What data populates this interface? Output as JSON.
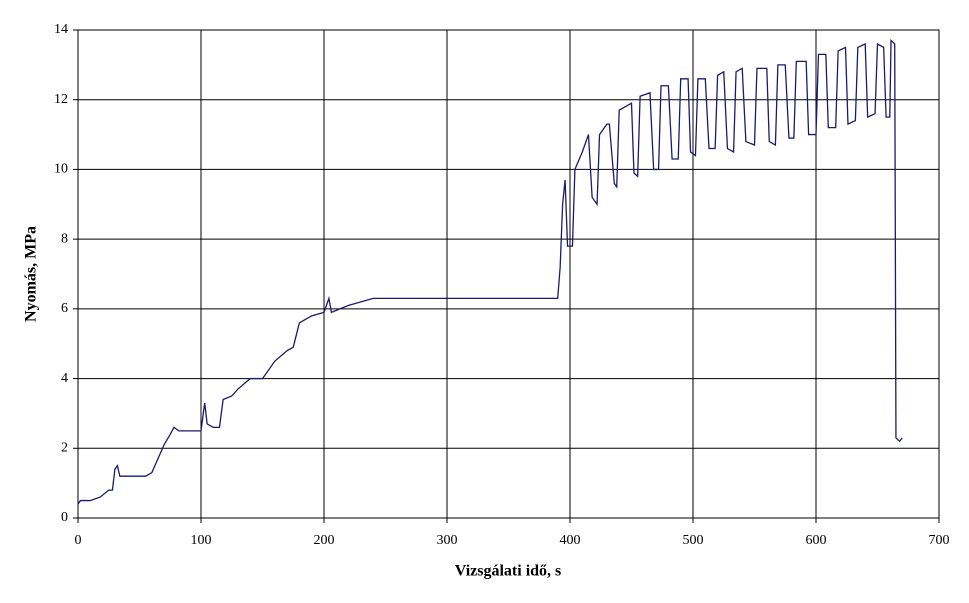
{
  "chart_data": {
    "type": "line",
    "xlabel": "Vizsgálati idő, s",
    "ylabel": "Nyomás, MPa",
    "xlim": [
      0,
      700
    ],
    "xticks": [
      0,
      100,
      200,
      300,
      400,
      500,
      600,
      700
    ],
    "ylim": [
      0,
      14
    ],
    "yticks": [
      0,
      2,
      4,
      6,
      8,
      10,
      12,
      14
    ],
    "grid": true,
    "series": [
      {
        "color": "#1a1a6e",
        "x": [
          0,
          2,
          10,
          18,
          25,
          28,
          30,
          32,
          34,
          45,
          55,
          60,
          65,
          70,
          75,
          78,
          82,
          90,
          100,
          103,
          105,
          110,
          115,
          118,
          125,
          130,
          140,
          150,
          160,
          170,
          175,
          180,
          190,
          200,
          204,
          206,
          220,
          240,
          260,
          300,
          340,
          380,
          390,
          392,
          394,
          396,
          398,
          402,
          404,
          410,
          415,
          418,
          422,
          424,
          430,
          432,
          436,
          438,
          440,
          450,
          452,
          455,
          457,
          465,
          468,
          472,
          474,
          480,
          483,
          488,
          490,
          496,
          498,
          502,
          504,
          510,
          513,
          518,
          520,
          525,
          528,
          533,
          535,
          540,
          543,
          550,
          552,
          560,
          562,
          567,
          569,
          575,
          578,
          582,
          584,
          592,
          594,
          600,
          602,
          608,
          610,
          616,
          618,
          624,
          626,
          632,
          634,
          640,
          642,
          648,
          650,
          655,
          657,
          660,
          661,
          664,
          665,
          668,
          670
        ],
        "values": [
          0.4,
          0.5,
          0.5,
          0.6,
          0.8,
          0.8,
          1.4,
          1.5,
          1.2,
          1.2,
          1.2,
          1.3,
          1.7,
          2.1,
          2.4,
          2.6,
          2.5,
          2.5,
          2.5,
          3.3,
          2.7,
          2.6,
          2.6,
          3.4,
          3.5,
          3.7,
          4.0,
          4.0,
          4.5,
          4.8,
          4.9,
          5.6,
          5.8,
          5.9,
          6.3,
          5.9,
          6.1,
          6.3,
          6.3,
          6.3,
          6.3,
          6.3,
          6.3,
          7.2,
          9.0,
          9.7,
          7.8,
          7.8,
          10.0,
          10.5,
          11.0,
          9.2,
          9.0,
          11.0,
          11.3,
          11.3,
          9.6,
          9.5,
          11.7,
          11.9,
          9.9,
          9.8,
          12.1,
          12.2,
          10.0,
          10.0,
          12.4,
          12.4,
          10.3,
          10.3,
          12.6,
          12.6,
          10.5,
          10.4,
          12.6,
          12.6,
          10.6,
          10.6,
          12.7,
          12.8,
          10.6,
          10.5,
          12.8,
          12.9,
          10.8,
          10.7,
          12.9,
          12.9,
          10.8,
          10.7,
          13.0,
          13.0,
          10.9,
          10.9,
          13.1,
          13.1,
          11.0,
          11.0,
          13.3,
          13.3,
          11.2,
          11.2,
          13.4,
          13.5,
          11.3,
          11.4,
          13.5,
          13.6,
          11.5,
          11.6,
          13.6,
          13.5,
          11.5,
          11.5,
          13.7,
          13.6,
          2.3,
          2.2,
          2.3
        ]
      }
    ]
  }
}
